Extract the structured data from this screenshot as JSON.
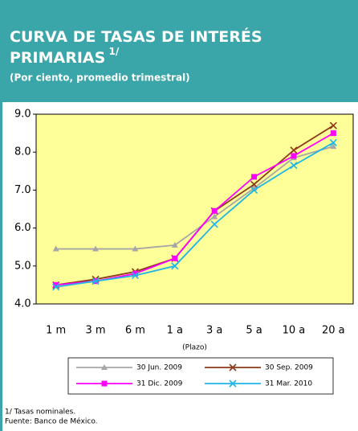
{
  "chart_data": {
    "type": "line",
    "title": "CURVA DE TASAS DE INTERÉS PRIMARIAS",
    "title_note": "1/",
    "subtitle": "(Por ciento, promedio trimestral)",
    "x_label": "(Plazo)",
    "categories": [
      "1 m",
      "3 m",
      "6 m",
      "1 a",
      "3 a",
      "5 a",
      "10 a",
      "20 a"
    ],
    "series": [
      {
        "name": "30 Jun. 2009",
        "color": "#a6a6a6",
        "marker": "triangle",
        "values": [
          5.45,
          5.45,
          5.45,
          5.55,
          6.3,
          7.05,
          7.85,
          8.15
        ]
      },
      {
        "name": "30 Sep. 2009",
        "color": "#8b3a1a",
        "marker": "x",
        "values": [
          4.5,
          4.65,
          4.85,
          5.2,
          6.45,
          7.15,
          8.05,
          8.7
        ]
      },
      {
        "name": "31 Dic. 2009",
        "color": "#ff00ff",
        "marker": "square",
        "values": [
          4.5,
          4.6,
          4.8,
          5.2,
          6.45,
          7.35,
          7.9,
          8.5
        ]
      },
      {
        "name": "31 Mar. 2010",
        "color": "#1fb5e6",
        "marker": "x",
        "values": [
          4.45,
          4.6,
          4.75,
          5.0,
          6.1,
          7.0,
          7.65,
          8.25
        ]
      }
    ],
    "ylim": [
      4,
      9
    ],
    "yticks": [
      {
        "value": 4,
        "label": "4.0"
      },
      {
        "value": 5,
        "label": "5.0"
      },
      {
        "value": 6,
        "label": "6.0"
      },
      {
        "value": 7,
        "label": "7.0"
      },
      {
        "value": 8,
        "label": "8.0"
      },
      {
        "value": 9,
        "label": "9.0"
      }
    ],
    "plot_background": "#ffff99",
    "footnotes": [
      "1/ Tasas nominales.",
      "Fuente:  Banco de México."
    ]
  }
}
